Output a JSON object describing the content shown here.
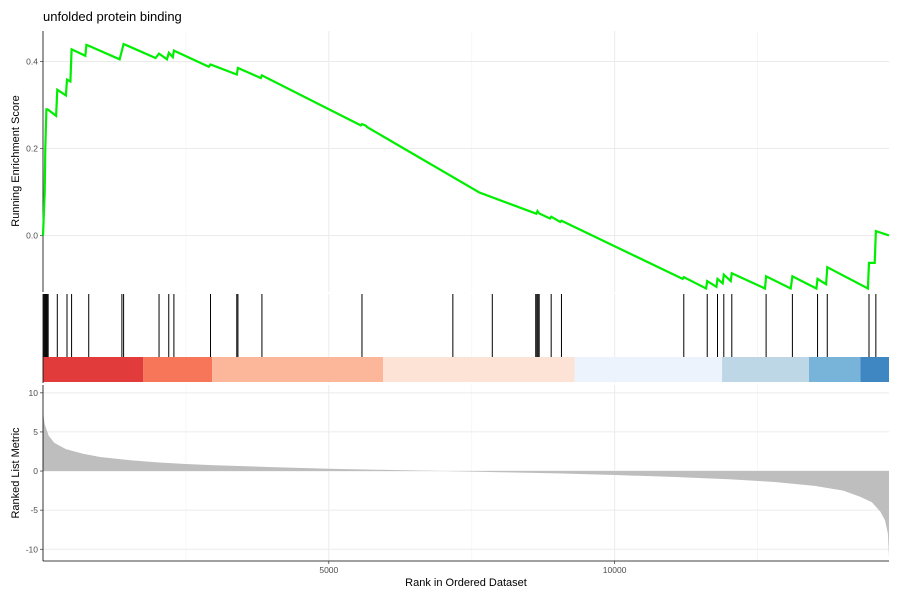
{
  "chart_data": {
    "type": "line",
    "title": "unfolded protein binding",
    "xlabel": "Rank in Ordered Dataset",
    "xlim": [
      0,
      14800
    ],
    "x_ticks": [
      5000,
      10000
    ],
    "x_tick_labels": [
      "5000",
      "10000"
    ],
    "panels": {
      "running_score": {
        "ylabel": "Running Enrichment Score",
        "ylim": [
          -0.13,
          0.47
        ],
        "y_ticks": [
          0.0,
          0.2,
          0.4
        ],
        "y_tick_labels": [
          "0.0",
          "0.2",
          "0.4"
        ],
        "color": "#00ee00",
        "x": [
          0,
          30,
          40,
          60,
          75,
          90,
          230,
          250,
          400,
          420,
          480,
          500,
          740,
          760,
          800,
          1340,
          1380,
          1410,
          1970,
          2030,
          2170,
          2200,
          2270,
          2290,
          2900,
          2930,
          3390,
          3410,
          3810,
          3830,
          5560,
          5580,
          5650,
          5670,
          7620,
          7630,
          8630,
          8650,
          8670,
          8690,
          8870,
          8890,
          9050,
          9070,
          11190,
          11210,
          11600,
          11620,
          11780,
          11800,
          11890,
          11910,
          12030,
          12050,
          12630,
          12650,
          13080,
          13110,
          13530,
          13550,
          13700,
          13720,
          14430,
          14450,
          14550,
          14570,
          14800
        ],
        "y": [
          0.0,
          0.1,
          0.2,
          0.29,
          0.29,
          0.289,
          0.275,
          0.335,
          0.322,
          0.358,
          0.354,
          0.428,
          0.413,
          0.438,
          0.436,
          0.405,
          0.425,
          0.44,
          0.408,
          0.418,
          0.405,
          0.42,
          0.41,
          0.425,
          0.388,
          0.393,
          0.37,
          0.385,
          0.362,
          0.368,
          0.253,
          0.256,
          0.252,
          0.249,
          0.1,
          0.099,
          0.05,
          0.056,
          0.052,
          0.05,
          0.039,
          0.043,
          0.031,
          0.034,
          -0.1,
          -0.096,
          -0.122,
          -0.105,
          -0.118,
          -0.1,
          -0.11,
          -0.09,
          -0.105,
          -0.087,
          -0.122,
          -0.094,
          -0.122,
          -0.094,
          -0.122,
          -0.1,
          -0.112,
          -0.073,
          -0.122,
          -0.063,
          -0.063,
          0.01,
          0.0
        ]
      },
      "hits": {
        "positions": [
          15,
          30,
          45,
          60,
          75,
          90,
          250,
          420,
          500,
          800,
          1380,
          1410,
          2030,
          2200,
          2290,
          2930,
          3390,
          3410,
          3830,
          5580,
          7170,
          7860,
          8620,
          8640,
          8660,
          8680,
          8890,
          9070,
          11210,
          11620,
          11800,
          11910,
          12050,
          12650,
          13110,
          13550,
          13720,
          14450,
          14570
        ],
        "color_band": [
          {
            "from": 0,
            "to": 1750,
            "color": "#e13b3b"
          },
          {
            "from": 1750,
            "to": 2960,
            "color": "#f7765a"
          },
          {
            "from": 2960,
            "to": 5950,
            "color": "#fcb79a"
          },
          {
            "from": 5950,
            "to": 9300,
            "color": "#fde2d6"
          },
          {
            "from": 9300,
            "to": 11880,
            "color": "#edf3fc"
          },
          {
            "from": 11880,
            "to": 13400,
            "color": "#bdd7e7"
          },
          {
            "from": 13400,
            "to": 14300,
            "color": "#78b4da"
          },
          {
            "from": 14300,
            "to": 14800,
            "color": "#3f87c2"
          }
        ]
      },
      "ranked_metric": {
        "ylabel": "Ranked List Metric",
        "ylim": [
          -11.5,
          11
        ],
        "y_ticks": [
          10,
          5,
          0,
          -5,
          -10
        ],
        "y_tick_labels": [
          "10",
          "5",
          "0",
          "-5",
          "-10"
        ],
        "fill_color": "#bebebe",
        "x": [
          0,
          30,
          100,
          200,
          400,
          700,
          1000,
          1500,
          2000,
          2500,
          3000,
          4000,
          5000,
          6000,
          7000,
          8000,
          9000,
          10000,
          11000,
          12000,
          12800,
          13500,
          14000,
          14300,
          14500,
          14650,
          14730,
          14780,
          14800
        ],
        "values": [
          7.5,
          6.0,
          4.5,
          3.6,
          2.8,
          2.2,
          1.8,
          1.4,
          1.1,
          0.9,
          0.75,
          0.5,
          0.3,
          0.15,
          0.0,
          -0.15,
          -0.3,
          -0.5,
          -0.75,
          -1.05,
          -1.4,
          -1.9,
          -2.5,
          -3.3,
          -4.0,
          -5.2,
          -6.3,
          -8.0,
          -11.0
        ]
      }
    },
    "grid": true
  }
}
